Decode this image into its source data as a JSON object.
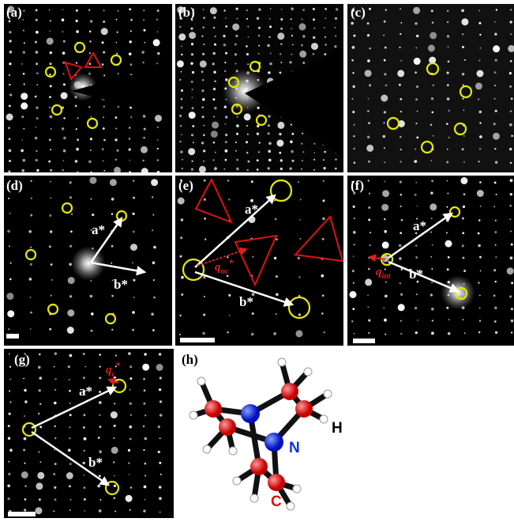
{
  "panels": [
    {
      "label": "(a)"
    },
    {
      "label": "(b)"
    },
    {
      "label": "(c)"
    },
    {
      "label": "(d)"
    },
    {
      "label": "(e)"
    },
    {
      "label": "(f)"
    },
    {
      "label": "(g)"
    },
    {
      "label": "(h)"
    }
  ],
  "annotations": {
    "d": {
      "a": "a*",
      "b": "b*"
    },
    "e": {
      "a": "a*",
      "b": "b*",
      "q": "q",
      "q_sub": "nc",
      "q_sup": "*"
    },
    "f": {
      "a": "a*",
      "b": "b*",
      "q": "q",
      "q_sub": "int"
    },
    "g": {
      "a": "a*",
      "b": "b*",
      "q": "q",
      "q_sub": "c",
      "q_sup": "*"
    }
  },
  "molecule": {
    "atoms": [
      "N",
      "H",
      "C"
    ]
  }
}
